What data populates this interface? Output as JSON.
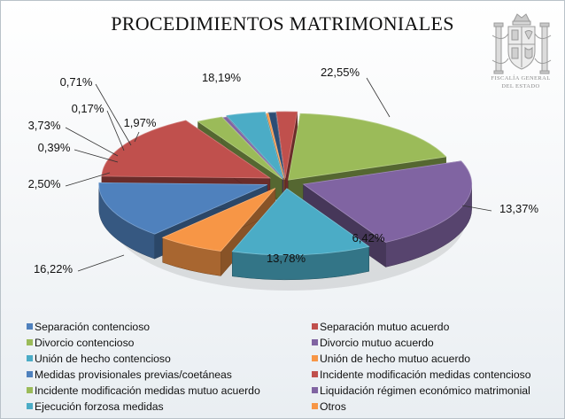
{
  "title": "PROCEDIMIENTOS MATRIMONIALES",
  "emblem": {
    "icon": "coat-of-arms-icon",
    "line1": "FISCALÍA GENERAL",
    "line2": "DEL ESTADO"
  },
  "chart_data": {
    "type": "pie",
    "style": "3d-exploded",
    "title": "PROCEDIMIENTOS MATRIMONIALES",
    "legend_position": "bottom",
    "series": [
      {
        "name": "Separación contencioso",
        "value": 0.0,
        "label": "",
        "color": "#4f81bd"
      },
      {
        "name": "Separación mutuo acuerdo",
        "value": 1.97,
        "label": "1,97%",
        "color": "#c0504d"
      },
      {
        "name": "Divorcio contencioso",
        "value": 18.19,
        "label": "18,19%",
        "color": "#9bbb59"
      },
      {
        "name": "Divorcio mutuo acuerdo",
        "value": 22.55,
        "label": "22,55%",
        "color": "#8064a2"
      },
      {
        "name": "Unión de hecho contencioso",
        "value": 13.37,
        "label": "13,37%",
        "color": "#4bacc6"
      },
      {
        "name": "Unión de hecho mutuo acuerdo",
        "value": 6.42,
        "label": "6,42%",
        "color": "#f79646"
      },
      {
        "name": "Medidas provisionales previas/coetáneas",
        "value": 13.78,
        "label": "13,78%",
        "color": "#4f81bd"
      },
      {
        "name": "Incidente modificación medidas contencioso",
        "value": 16.22,
        "label": "16,22%",
        "color": "#c0504d"
      },
      {
        "name": "Incidente modificación medidas mutuo acuerdo",
        "value": 2.5,
        "label": "2,50%",
        "color": "#9bbb59"
      },
      {
        "name": "Liquidación régimen económico matrimonial",
        "value": 0.39,
        "label": "0,39%",
        "color": "#8064a2"
      },
      {
        "name": "Ejecución forzosa medidas",
        "value": 3.73,
        "label": "3,73%",
        "color": "#4bacc6"
      },
      {
        "name": "Otros",
        "value": 0.17,
        "label": "0,17%",
        "color": "#f79646"
      },
      {
        "name": "",
        "value": 0.71,
        "label": "0,71%",
        "color": "#2c4d75"
      }
    ]
  },
  "legend": [
    {
      "label": "Separación contencioso",
      "color": "#4f81bd"
    },
    {
      "label": "Separación mutuo acuerdo",
      "color": "#c0504d"
    },
    {
      "label": "Divorcio contencioso",
      "color": "#9bbb59"
    },
    {
      "label": "Divorcio mutuo acuerdo",
      "color": "#8064a2"
    },
    {
      "label": "Unión de hecho contencioso",
      "color": "#4bacc6"
    },
    {
      "label": "Unión de hecho mutuo acuerdo",
      "color": "#f79646"
    },
    {
      "label": "Medidas provisionales previas/coetáneas",
      "color": "#4f81bd"
    },
    {
      "label": "Incidente modificación medidas contencioso",
      "color": "#c0504d"
    },
    {
      "label": "Incidente modificación medidas mutuo acuerdo",
      "color": "#9bbb59"
    },
    {
      "label": "Liquidación régimen económico matrimonial",
      "color": "#8064a2"
    },
    {
      "label": "Ejecución forzosa medidas",
      "color": "#4bacc6"
    },
    {
      "label": "Otros",
      "color": "#f79646"
    }
  ]
}
